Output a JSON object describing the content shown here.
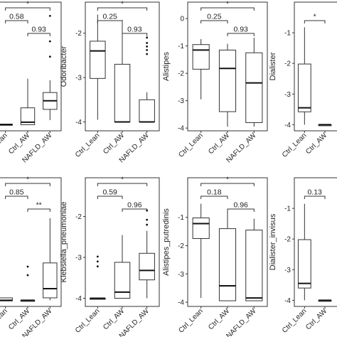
{
  "chart_data": [
    {
      "type": "box",
      "ylabel": "",
      "categories": [
        "Ctrl_Lean",
        "Ctrl_AW",
        "NAFLD_AW"
      ],
      "ylim": [
        -4.2,
        0
      ],
      "yticks": [],
      "boxes": [
        {
          "q1": -4.02,
          "median": -4.0,
          "q3": -3.98,
          "whisker_low": -4.02,
          "whisker_high": -3.98,
          "outliers": []
        },
        {
          "q1": -4.0,
          "median": -3.92,
          "q3": -3.45,
          "whisker_low": -4.0,
          "whisker_high": -2.5,
          "outliers": []
        },
        {
          "q1": -3.5,
          "median": -3.22,
          "q3": -2.95,
          "whisker_low": -3.85,
          "whisker_high": -2.55,
          "outliers": [
            -1.78,
            -1.28,
            -0.45
          ]
        }
      ],
      "brackets": [
        {
          "pair": [
            0,
            2
          ],
          "label": "*"
        },
        {
          "pair": [
            0,
            1
          ],
          "label": "0.58"
        },
        {
          "pair": [
            1,
            2
          ],
          "label": "0.93"
        }
      ]
    },
    {
      "type": "box",
      "ylabel": "Odoribacter",
      "categories": [
        "Ctrl_Lean",
        "Ctrl_AW",
        "NAFLD_AW"
      ],
      "ylim": [
        -4.2,
        -1.3
      ],
      "yticks": [
        "-2",
        "-3",
        "-4"
      ],
      "boxes": [
        {
          "q1": -3.02,
          "median": -2.4,
          "q3": -2.18,
          "whisker_low": -3.95,
          "whisker_high": -1.58,
          "outliers": []
        },
        {
          "q1": -4.0,
          "median": -4.0,
          "q3": -2.7,
          "whisker_low": -4.0,
          "whisker_high": -1.7,
          "outliers": []
        },
        {
          "q1": -4.0,
          "median": -4.0,
          "q3": -3.5,
          "whisker_low": -4.0,
          "whisker_high": -3.33,
          "outliers": [
            -2.1,
            -2.22,
            -2.3,
            -2.38,
            -2.47
          ]
        }
      ],
      "brackets": [
        {
          "pair": [
            0,
            2
          ],
          "label": "*"
        },
        {
          "pair": [
            0,
            1
          ],
          "label": "0.25"
        },
        {
          "pair": [
            1,
            2
          ],
          "label": "0.93"
        }
      ]
    },
    {
      "type": "box",
      "ylabel": "Alistipes",
      "categories": [
        "Ctrl_Lean",
        "Ctrl_AW",
        "NAFLD_AW"
      ],
      "ylim": [
        -4.1,
        0.6
      ],
      "yticks": [
        "0",
        "-1",
        "-2",
        "-3",
        "-4"
      ],
      "boxes": [
        {
          "q1": -1.85,
          "median": -1.15,
          "q3": -0.95,
          "whisker_low": -2.95,
          "whisker_high": -0.75,
          "outliers": []
        },
        {
          "q1": -3.4,
          "median": -1.82,
          "q3": -1.15,
          "whisker_low": -3.95,
          "whisker_high": -0.92,
          "outliers": []
        },
        {
          "q1": -3.8,
          "median": -2.35,
          "q3": -1.25,
          "whisker_low": -3.95,
          "whisker_high": -0.7,
          "outliers": []
        }
      ],
      "brackets": [
        {
          "pair": [
            0,
            2
          ],
          "label": "*"
        },
        {
          "pair": [
            0,
            1
          ],
          "label": "0.25"
        },
        {
          "pair": [
            1,
            2
          ],
          "label": "0.93"
        }
      ]
    },
    {
      "type": "box",
      "ylabel": "Dialister",
      "categories": [
        "Ctrl_Lean",
        "Ctrl_AW"
      ],
      "ylim": [
        -4.2,
        0
      ],
      "yticks": [
        "-1",
        "-2",
        "-3",
        "-4"
      ],
      "boxes": [
        {
          "q1": -3.58,
          "median": -3.45,
          "q3": -2.02,
          "whisker_low": -4.0,
          "whisker_high": -0.82,
          "outliers": []
        },
        {
          "q1": -4.0,
          "median": -4.0,
          "q3": -4.0,
          "whisker_low": -4.0,
          "whisker_high": -4.0,
          "outliers": []
        }
      ],
      "brackets": [
        {
          "pair": [
            0,
            1
          ],
          "label": "*"
        }
      ]
    },
    {
      "type": "box",
      "ylabel": "",
      "categories": [
        "Ctrl_Lean",
        "Ctrl_AW",
        "NAFLD_AW"
      ],
      "ylim": [
        -4.2,
        0
      ],
      "yticks": [],
      "boxes": [
        {
          "q1": -4.02,
          "median": -4.0,
          "q3": -3.92,
          "whisker_low": -4.02,
          "whisker_high": -3.92,
          "outliers": []
        },
        {
          "q1": -4.0,
          "median": -4.0,
          "q3": -4.0,
          "whisker_low": -4.0,
          "whisker_high": -4.0,
          "outliers": [
            -3.18,
            -2.9
          ]
        },
        {
          "q1": -3.92,
          "median": -3.62,
          "q3": -2.78,
          "whisker_low": -4.0,
          "whisker_high": -1.32,
          "outliers": []
        }
      ],
      "brackets": [
        {
          "pair": [
            0,
            2
          ],
          "label": "*"
        },
        {
          "pair": [
            0,
            1
          ],
          "label": "0.85"
        },
        {
          "pair": [
            1,
            2
          ],
          "label": "**"
        }
      ]
    },
    {
      "type": "box",
      "ylabel": "Klebsiella_pneumoniae",
      "categories": [
        "Ctrl_Lean",
        "Ctrl_AW",
        "NAFLD_AW"
      ],
      "ylim": [
        -4.2,
        -1.05
      ],
      "yticks": [
        "-2",
        "-3",
        "-4"
      ],
      "boxes": [
        {
          "q1": -4.0,
          "median": -4.0,
          "q3": -4.0,
          "whisker_low": -4.0,
          "whisker_high": -4.0,
          "outliers": [
            -3.22,
            -3.1,
            -2.98
          ]
        },
        {
          "q1": -4.0,
          "median": -3.85,
          "q3": -3.12,
          "whisker_low": -4.0,
          "whisker_high": -2.45,
          "outliers": []
        },
        {
          "q1": -3.55,
          "median": -3.32,
          "q3": -2.9,
          "whisker_low": -4.0,
          "whisker_high": -2.35,
          "outliers": [
            -2.2,
            -2.08,
            -1.85
          ]
        }
      ],
      "brackets": [
        {
          "pair": [
            0,
            2
          ],
          "label": "*"
        },
        {
          "pair": [
            0,
            1
          ],
          "label": "0.59"
        },
        {
          "pair": [
            1,
            2
          ],
          "label": "0.96"
        }
      ]
    },
    {
      "type": "box",
      "ylabel": "Alistipes_putredinis",
      "categories": [
        "Ctrl_Lean",
        "Ctrl_AW",
        "NAFLD_AW"
      ],
      "ylim": [
        -4.15,
        0.4
      ],
      "yticks": [
        "-1",
        "-2",
        "-3",
        "-4"
      ],
      "boxes": [
        {
          "q1": -1.75,
          "median": -1.22,
          "q3": -1.02,
          "whisker_low": -3.85,
          "whisker_high": -0.52,
          "outliers": []
        },
        {
          "q1": -3.95,
          "median": -3.42,
          "q3": -1.4,
          "whisker_low": -3.95,
          "whisker_high": -0.7,
          "outliers": []
        },
        {
          "q1": -3.95,
          "median": -3.85,
          "q3": -1.45,
          "whisker_low": -3.95,
          "whisker_high": -1.05,
          "outliers": []
        }
      ],
      "brackets": [
        {
          "pair": [
            0,
            2
          ],
          "label": "*"
        },
        {
          "pair": [
            0,
            1
          ],
          "label": "0.18"
        },
        {
          "pair": [
            1,
            2
          ],
          "label": "0.96"
        }
      ]
    },
    {
      "type": "box",
      "ylabel": "Dialister_invisus",
      "categories": [
        "Ctrl_Lean",
        "Ctrl_AW"
      ],
      "ylim": [
        -4.2,
        0
      ],
      "yticks": [
        "-1",
        "-2",
        "-3",
        "-4"
      ],
      "boxes": [
        {
          "q1": -3.6,
          "median": -3.45,
          "q3": -2.02,
          "whisker_low": -4.0,
          "whisker_high": -0.85,
          "outliers": []
        },
        {
          "q1": -4.0,
          "median": -4.0,
          "q3": -4.0,
          "whisker_low": -4.0,
          "whisker_high": -4.0,
          "outliers": []
        }
      ],
      "brackets": [
        {
          "pair": [
            0,
            1
          ],
          "label": "0.13"
        }
      ]
    }
  ]
}
